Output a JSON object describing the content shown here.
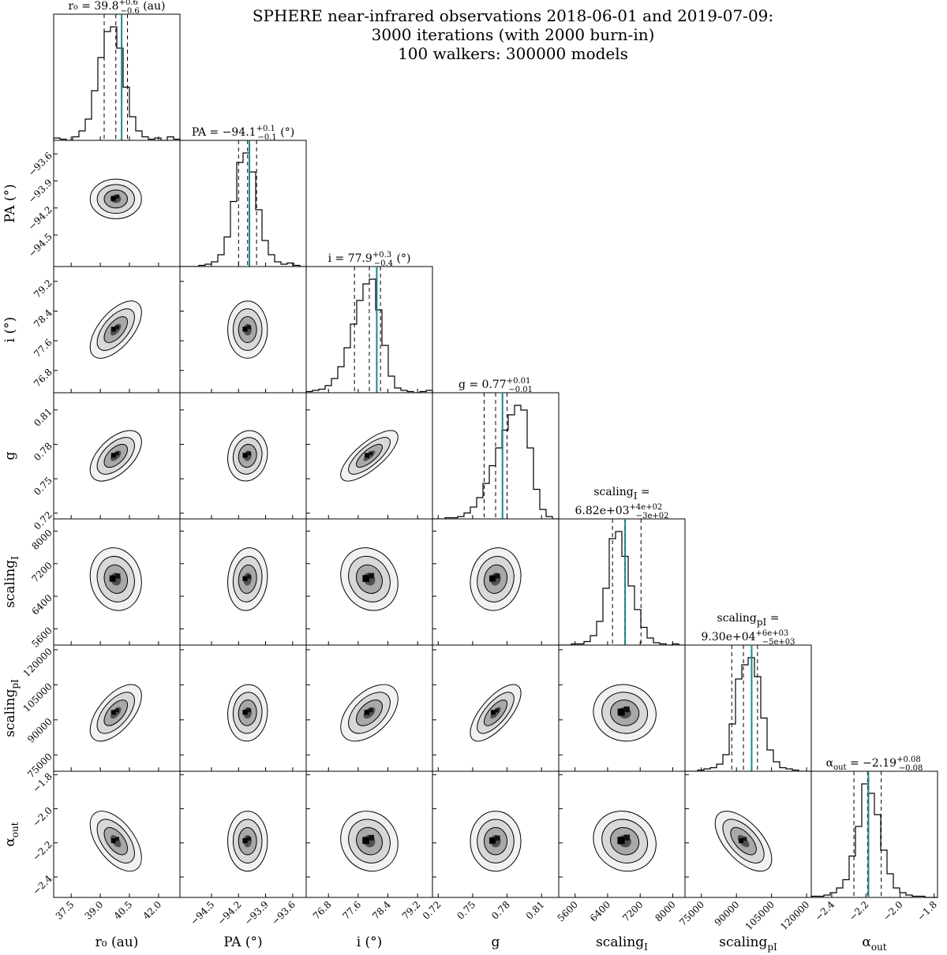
{
  "figure": {
    "title_lines": [
      "SPHERE near-infrared observations 2018-06-01 and 2019-07-09:",
      "3000 iterations (with 2000 burn-in)",
      "100 walkers: 300000 models"
    ]
  },
  "colors": {
    "truth_line": "#1a8a8a",
    "hist_line": "#000000",
    "frame": "#000000"
  },
  "chart_data": {
    "type": "corner",
    "title": "SPHERE near-infrared observations 2018-06-01 and 2019-07-09: 3000 iterations (with 2000 burn-in) 100 walkers: 300000 models",
    "parameters": [
      {
        "name": "r0",
        "label": "r₀ (au)",
        "unit": "au",
        "title_text": "r₀ = 39.8",
        "sup": "+0.6",
        "sub": "−0.6",
        "title_suffix": "(au)",
        "median": 39.8,
        "err_minus": 0.6,
        "err_plus": 0.6,
        "best": 40.1,
        "range": [
          36.6,
          43.1
        ],
        "ticks": [
          37.5,
          39.0,
          40.5,
          42.0
        ],
        "tick_labels": [
          "37.5",
          "39.0",
          "40.5",
          "42.0"
        ],
        "hist_counts": [
          2,
          1,
          0,
          3,
          8,
          18,
          42,
          70,
          92,
          96,
          78,
          45,
          20,
          8,
          3,
          1,
          2,
          0,
          3,
          1
        ]
      },
      {
        "name": "PA",
        "label": "PA (°)",
        "unit": "°",
        "title_text": "PA = −94.1",
        "sup": "+0.1",
        "sub": "−0.1",
        "title_suffix": "(°)",
        "median": -94.1,
        "err_minus": 0.1,
        "err_plus": 0.1,
        "best": -94.08,
        "range": [
          -94.85,
          -93.45
        ],
        "ticks": [
          -94.5,
          -94.2,
          -93.9,
          -93.6
        ],
        "tick_labels": [
          "−94.5",
          "−94.2",
          "−93.9",
          "−93.6"
        ],
        "hist_counts": [
          0,
          0,
          0,
          1,
          2,
          4,
          10,
          25,
          55,
          88,
          96,
          80,
          48,
          22,
          10,
          4,
          2,
          3,
          1,
          0
        ]
      },
      {
        "name": "i",
        "label": "i (°)",
        "unit": "°",
        "title_text": "i = 77.9",
        "sup": "+0.3",
        "sub": "−0.4",
        "title_suffix": "(°)",
        "median": 77.9,
        "err_minus": 0.4,
        "err_plus": 0.3,
        "best": 78.1,
        "range": [
          76.2,
          79.6
        ],
        "ticks": [
          76.8,
          77.6,
          78.4,
          79.2
        ],
        "tick_labels": [
          "76.8",
          "77.6",
          "78.4",
          "79.2"
        ],
        "hist_counts": [
          1,
          2,
          3,
          6,
          12,
          22,
          38,
          58,
          78,
          92,
          96,
          70,
          40,
          14,
          4,
          2,
          1,
          0,
          1,
          2
        ]
      },
      {
        "name": "g",
        "label": "g",
        "unit": "",
        "title_text": "g = 0.77",
        "sup": "+0.01",
        "sub": "−0.01",
        "title_suffix": "",
        "median": 0.77,
        "err_minus": 0.01,
        "err_plus": 0.01,
        "best": 0.776,
        "range": [
          0.715,
          0.825
        ],
        "ticks": [
          0.72,
          0.75,
          0.78,
          0.81
        ],
        "tick_labels": [
          "0.72",
          "0.75",
          "0.78",
          "0.81"
        ],
        "hist_counts": [
          0,
          0,
          1,
          1,
          2,
          5,
          10,
          18,
          30,
          45,
          60,
          75,
          88,
          96,
          92,
          60,
          25,
          8,
          2,
          0
        ]
      },
      {
        "name": "scaling_I",
        "label": "scaling_I",
        "unit": "",
        "title_line1": "scaling_I =",
        "title_text": "6.82e+03",
        "sup": "+4e+02",
        "sub": "−3e+02",
        "title_suffix": "",
        "median": 6820,
        "err_minus": 300,
        "err_plus": 400,
        "best": 6830,
        "range": [
          5200,
          8300
        ],
        "ticks": [
          5600,
          6400,
          7200,
          8000
        ],
        "tick_labels": [
          "5600",
          "6400",
          "7200",
          "8000"
        ],
        "hist_counts": [
          0,
          0,
          1,
          1,
          3,
          8,
          20,
          48,
          90,
          96,
          75,
          50,
          30,
          15,
          6,
          2,
          1,
          0,
          1,
          0
        ]
      },
      {
        "name": "scaling_pI",
        "label": "scaling_pI",
        "unit": "",
        "title_line1": "scaling_pI =",
        "title_text": "9.30e+04",
        "sup": "+6e+03",
        "sub": "−5e+03",
        "title_suffix": "",
        "median": 93000,
        "err_minus": 5000,
        "err_plus": 6000,
        "best": 96500,
        "range": [
          68000,
          122000
        ],
        "ticks": [
          75000,
          90000,
          105000,
          120000
        ],
        "tick_labels": [
          "75000",
          "90000",
          "105000",
          "120000"
        ],
        "hist_counts": [
          0,
          0,
          1,
          2,
          3,
          6,
          14,
          40,
          78,
          90,
          96,
          80,
          45,
          18,
          8,
          3,
          2,
          1,
          0,
          0
        ]
      },
      {
        "name": "alpha_out",
        "label": "α_out",
        "unit": "",
        "title_text": "α_out = −2.19",
        "sup": "+0.08",
        "sub": "−0.08",
        "title_suffix": "",
        "median": -2.19,
        "err_minus": 0.08,
        "err_plus": 0.08,
        "best": -2.185,
        "range": [
          -2.52,
          -1.78
        ],
        "ticks": [
          -2.4,
          -2.2,
          -2.0,
          -1.8
        ],
        "tick_labels": [
          "−2.4",
          "−2.2",
          "−2.0",
          "−1.8"
        ],
        "hist_counts": [
          1,
          1,
          2,
          4,
          8,
          15,
          35,
          60,
          96,
          88,
          70,
          40,
          20,
          8,
          4,
          2,
          1,
          1,
          0,
          0
        ]
      }
    ],
    "correlations": [
      [
        0,
        0,
        0,
        0,
        0,
        0,
        0
      ],
      [
        0,
        0,
        0,
        0,
        0,
        0,
        0
      ],
      [
        0.6,
        0,
        0,
        0,
        0,
        0,
        0
      ],
      [
        0.55,
        0.1,
        0.75,
        0,
        0,
        0,
        0
      ],
      [
        -0.1,
        0.1,
        -0.15,
        0.1,
        0,
        0,
        0
      ],
      [
        0.6,
        0.05,
        0.5,
        0.7,
        -0.05,
        0,
        0
      ],
      [
        -0.55,
        0,
        -0.1,
        0,
        -0.1,
        -0.6,
        0
      ]
    ]
  }
}
